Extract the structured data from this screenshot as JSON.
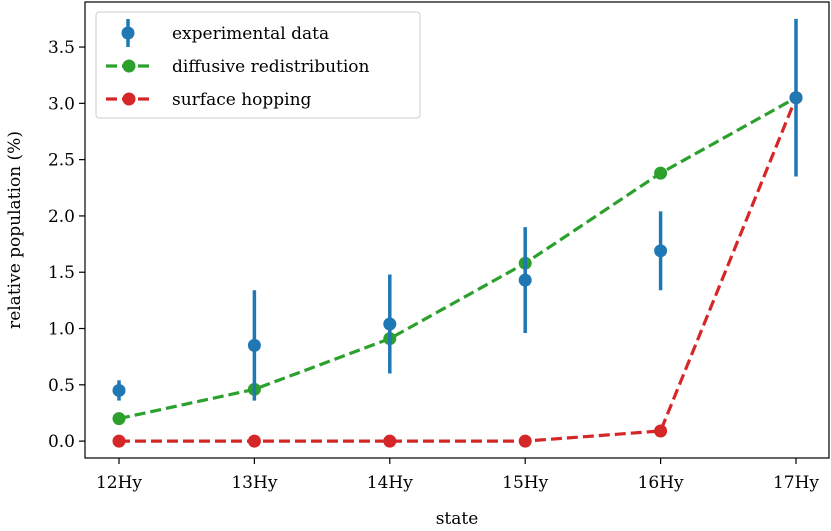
{
  "chart_data": {
    "type": "line",
    "categories": [
      "12Hy",
      "13Hy",
      "14Hy",
      "15Hy",
      "16Hy",
      "17Hy"
    ],
    "xlabel": "state",
    "ylabel": "relative population (%)",
    "ylim": [
      -0.15,
      3.9
    ],
    "yticks": [
      "0.0",
      "0.5",
      "1.0",
      "1.5",
      "2.0",
      "2.5",
      "3.0",
      "3.5"
    ],
    "grid": false,
    "legend_position": "top-left",
    "series": [
      {
        "name": "experimental data",
        "style": "errorbar",
        "color": "#1f77b4",
        "values": [
          0.45,
          0.85,
          1.04,
          1.43,
          1.69,
          3.05
        ],
        "errors": [
          0.09,
          0.49,
          0.44,
          0.47,
          0.35,
          0.7
        ]
      },
      {
        "name": "diffusive redistribution",
        "style": "dashed-marker",
        "color": "#2ca02c",
        "values": [
          0.2,
          0.46,
          0.91,
          1.58,
          2.38,
          3.05
        ]
      },
      {
        "name": "surface hopping",
        "style": "dashed-marker",
        "color": "#d62728",
        "values": [
          0.0,
          0.0,
          0.0,
          0.0,
          0.09,
          3.05
        ]
      }
    ]
  }
}
